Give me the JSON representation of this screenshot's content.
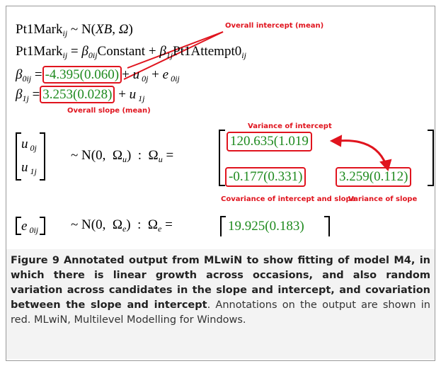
{
  "output": {
    "lines": [
      [
        {
          "t": "Pt1Mark"
        },
        {
          "t": "ij",
          "sub": true
        },
        {
          "t": " ~ N("
        },
        {
          "t": "XB",
          "it": true
        },
        {
          "t": ", "
        },
        {
          "t": "Ω",
          "it": true
        },
        {
          "t": ")"
        }
      ],
      [
        {
          "t": "Pt1Mark"
        },
        {
          "t": "ij",
          "sub": true
        },
        {
          "t": " = "
        },
        {
          "t": "β",
          "it": true
        },
        {
          "t": "0ij",
          "sub": true
        },
        {
          "t": "Constant + "
        },
        {
          "t": "β",
          "it": true
        },
        {
          "t": "1j",
          "sub": true
        },
        {
          "t": "Pt1Attempt0"
        },
        {
          "t": "ij",
          "sub": true
        }
      ],
      [
        {
          "t": "β",
          "it": true
        },
        {
          "t": "0ij",
          "sub": true
        },
        {
          "t": " ="
        },
        {
          "t": "-4.395(0.060)",
          "box": true
        },
        {
          "t": "+ "
        },
        {
          "t": "u",
          "it": true
        },
        {
          "t": " 0j",
          "sub": true
        },
        {
          "t": " + "
        },
        {
          "t": "e",
          "it": true
        },
        {
          "t": " 0ij",
          "sub": true
        }
      ],
      [
        {
          "t": "β",
          "it": true
        },
        {
          "t": "1j",
          "sub": true
        },
        {
          "t": " ="
        },
        {
          "t": "3.253(0.028)",
          "box": true
        },
        {
          "t": " + "
        },
        {
          "t": "u",
          "it": true
        },
        {
          "t": " 1j",
          "sub": true
        }
      ]
    ],
    "u_rows": [
      [
        {
          "t": "u",
          "it": true
        },
        {
          "t": " 0j",
          "sub": true
        }
      ],
      [
        {
          "t": "u",
          "it": true
        },
        {
          "t": " 1j",
          "sub": true
        }
      ]
    ],
    "u_dist": [
      {
        "t": "~ N(0,  Ω"
      },
      {
        "t": "u",
        "sub": true
      },
      {
        "t": ")  :  Ω"
      },
      {
        "t": "u",
        "sub": true
      },
      {
        "t": " ="
      }
    ],
    "u_cells": [
      "120.635(1.019",
      "-0.177(0.331)",
      "3.259(0.112)"
    ],
    "e_row": [
      {
        "t": "e",
        "it": true
      },
      {
        "t": " 0ij",
        "sub": true
      }
    ],
    "e_dist": [
      {
        "t": "~ N(0,  Ω"
      },
      {
        "t": "e",
        "sub": true
      },
      {
        "t": ")  :  Ω"
      },
      {
        "t": "e",
        "sub": true
      },
      {
        "t": " ="
      }
    ],
    "e_cell": "19.925(0.183)"
  },
  "annotations": [
    "Overall intercept (mean)",
    "Overall slope (mean)",
    "Variance of intercept",
    "Covariance of intercept and slope",
    "Variance of slope"
  ],
  "caption": {
    "label": "Figure 9",
    "title": "Annotated output from MLwiN to show fitting of model M4, in which there is linear growth across occasions, and also random variation across candidates in the slope and intercept, and covariation between the slope and intercept",
    "body": ". Annotations on the output are shown in red. MLwiN, Multilevel Modelling for Windows."
  }
}
